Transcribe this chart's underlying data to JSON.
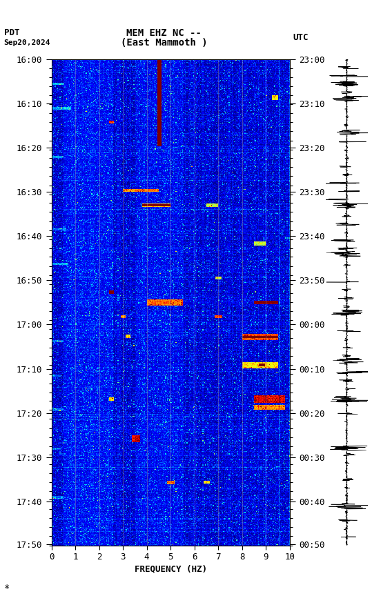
{
  "title_line1": "MEM EHZ NC --",
  "title_line2": "(East Mammoth )",
  "left_label_1": "PDT",
  "left_label_2": "Sep20,2024",
  "right_label": "UTC",
  "xlabel": "FREQUENCY (HZ)",
  "freq_min": 0,
  "freq_max": 10,
  "pdt_ticks": [
    "16:00",
    "16:10",
    "16:20",
    "16:30",
    "16:40",
    "16:50",
    "17:00",
    "17:10",
    "17:20",
    "17:30",
    "17:40",
    "17:50"
  ],
  "utc_ticks": [
    "23:00",
    "23:10",
    "23:20",
    "23:30",
    "23:40",
    "23:50",
    "00:00",
    "00:10",
    "00:20",
    "00:30",
    "00:40",
    "00:50"
  ],
  "n_time_steps": 660,
  "n_freq_steps": 300,
  "colormap": "jet",
  "background_color": "#ffffff",
  "vmin": 0.0,
  "vmax": 0.6,
  "seed": 42,
  "vertical_line_positions": [
    1,
    2,
    3,
    4,
    5,
    6,
    7,
    8,
    9
  ],
  "vertical_line_color": "#aaaaaa",
  "vertical_line_alpha": 0.4,
  "base_noise_scale": 0.04,
  "footnote": "*"
}
